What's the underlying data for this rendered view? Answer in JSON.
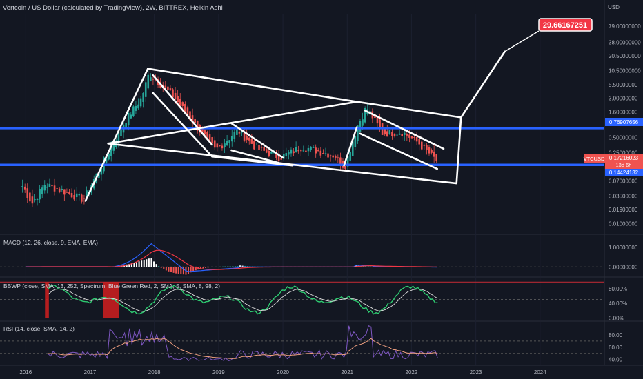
{
  "header": {
    "title": "Vertcoin / US Dollar (calculated by TradingView), 2W, BITTREX, Heikin Ashi",
    "currency": "USD"
  },
  "price_axis": {
    "ticks": [
      "79.00000000",
      "38.00000000",
      "20.50000000",
      "10.50000000",
      "5.50000000",
      "3.00000000",
      "1.60000000",
      "0.50000000",
      "0.25000000",
      "0.07000000",
      "0.03500000",
      "0.01900000",
      "0.01000000"
    ],
    "tick_values": [
      79,
      38,
      20.5,
      10.5,
      5.5,
      3,
      1.6,
      0.5,
      0.25,
      0.07,
      0.035,
      0.019,
      0.01
    ],
    "range": [
      0.0065,
      140
    ],
    "scale": "log"
  },
  "labels": {
    "target": "29.66167251",
    "symbol": "VTCUSD",
    "current_price": "0.17216023",
    "countdown": "13d 6h",
    "resistance": "0.76907656",
    "support": "0.14424132"
  },
  "levels": {
    "resistance": 0.76907656,
    "support": 0.14424132,
    "current": 0.17216023
  },
  "x_axis": {
    "years": [
      "2016",
      "2017",
      "2018",
      "2019",
      "2020",
      "2021",
      "2022",
      "2023",
      "2024"
    ],
    "year_values": [
      2016,
      2017,
      2018,
      2019,
      2020,
      2021,
      2022,
      2023,
      2024
    ],
    "range": [
      2015.6,
      2025.0
    ]
  },
  "panels": {
    "macd": {
      "label": "MACD (12, 26, close, 9, EMA, EMA)",
      "ticks": [
        "1.00000000",
        "0.00000000"
      ],
      "tick_values": [
        1,
        0
      ],
      "range": [
        -0.45,
        1.6
      ]
    },
    "bbwp": {
      "label": "BBWP (close, SMA, 13, 252, Spectrum, Blue Green Red, 2, SMA, 5, SMA, 8, 98, 2)",
      "ticks": [
        "80.00%",
        "40.00%",
        "0.00%"
      ],
      "tick_values": [
        80,
        40,
        0
      ],
      "range": [
        -5,
        108
      ]
    },
    "rsi": {
      "label": "RSI (14, close, SMA, 14, 2)",
      "ticks": [
        "80.00",
        "60.00",
        "40.00"
      ],
      "tick_values": [
        80,
        60,
        40
      ],
      "range": [
        33,
        100
      ]
    }
  },
  "colors": {
    "background": "#131722",
    "up": "#26a69a",
    "down": "#ef5350",
    "level_line": "#2962ff",
    "drawing": "#ffffff",
    "target_label": "#f23645"
  },
  "chart_data": {
    "type": "candlestick",
    "series_type": "heikin_ashi",
    "scale": "log",
    "key_points": [
      {
        "date": 2015.95,
        "price": 0.055
      },
      {
        "date": 2016.1,
        "price": 0.025
      },
      {
        "date": 2016.3,
        "price": 0.06
      },
      {
        "date": 2016.9,
        "price": 0.03
      },
      {
        "date": 2017.3,
        "price": 0.28
      },
      {
        "date": 2017.55,
        "price": 1.1
      },
      {
        "date": 2017.8,
        "price": 3.0
      },
      {
        "date": 2017.92,
        "price": 9.5
      },
      {
        "date": 2018.3,
        "price": 3.2
      },
      {
        "date": 2018.7,
        "price": 0.7
      },
      {
        "date": 2018.95,
        "price": 0.28
      },
      {
        "date": 2019.3,
        "price": 0.7
      },
      {
        "date": 2019.6,
        "price": 0.3
      },
      {
        "date": 2019.95,
        "price": 0.2
      },
      {
        "date": 2020.3,
        "price": 0.33
      },
      {
        "date": 2020.8,
        "price": 0.22
      },
      {
        "date": 2020.96,
        "price": 0.13
      },
      {
        "date": 2021.15,
        "price": 0.8
      },
      {
        "date": 2021.3,
        "price": 2.0
      },
      {
        "date": 2021.55,
        "price": 0.6
      },
      {
        "date": 2021.85,
        "price": 0.65
      },
      {
        "date": 2022.1,
        "price": 0.4
      },
      {
        "date": 2022.4,
        "price": 0.17
      }
    ]
  }
}
